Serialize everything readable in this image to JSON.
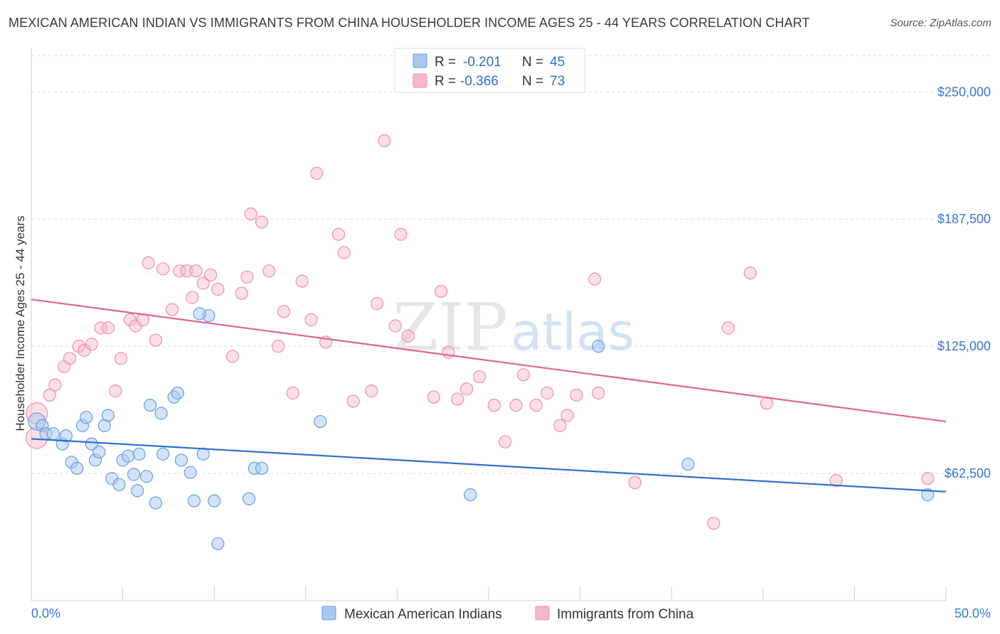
{
  "title": "MEXICAN AMERICAN INDIAN VS IMMIGRANTS FROM CHINA HOUSEHOLDER INCOME AGES 25 - 44 YEARS CORRELATION CHART",
  "source": "Source: ZipAtlas.com",
  "watermark": {
    "zip": "ZIP",
    "atlas": "atlas"
  },
  "colors": {
    "blue_fill": "#a9c8f0",
    "blue_stroke": "#6a9ee0",
    "blue_line": "#2f6fd0",
    "pink_fill": "#f7b8cb",
    "pink_stroke": "#ee8fae",
    "pink_line": "#e06690",
    "tick_label": "#3b78c8",
    "grid": "#dddddd"
  },
  "legend": {
    "rows": [
      {
        "r_label": "R =",
        "r_value": "-0.201",
        "n_label": "N =",
        "n_value": "45"
      },
      {
        "r_label": "R =",
        "r_value": "-0.366",
        "n_label": "N =",
        "n_value": "73"
      }
    ]
  },
  "chart_data": {
    "type": "scatter",
    "title": "MEXICAN AMERICAN INDIAN VS IMMIGRANTS FROM CHINA HOUSEHOLDER INCOME AGES 25 - 44 YEARS CORRELATION CHART",
    "xlabel": "",
    "ylabel": "Householder Income Ages 25 - 44 years",
    "xlim": [
      0,
      50
    ],
    "ylim": [
      0,
      270000
    ],
    "x_tick_labels": [
      "0.0%",
      "50.0%"
    ],
    "y_ticks": [
      62500,
      125000,
      187500,
      250000
    ],
    "y_tick_labels": [
      "$62,500",
      "$125,000",
      "$187,500",
      "$250,000"
    ],
    "grid": true,
    "legend_position": "top-center",
    "series": [
      {
        "name": "Mexican American Indians",
        "color": "#a9c8f0",
        "trend": {
          "x": [
            0,
            50
          ],
          "y": [
            79500,
            53500
          ]
        },
        "points": [
          [
            0.3,
            88000
          ],
          [
            0.6,
            86000
          ],
          [
            0.8,
            82000
          ],
          [
            1.2,
            82000
          ],
          [
            1.7,
            77000
          ],
          [
            1.9,
            81000
          ],
          [
            2.2,
            68000
          ],
          [
            2.5,
            65000
          ],
          [
            2.8,
            86000
          ],
          [
            3.0,
            90000
          ],
          [
            3.3,
            77000
          ],
          [
            3.5,
            69000
          ],
          [
            3.7,
            73000
          ],
          [
            4.0,
            86000
          ],
          [
            4.2,
            91000
          ],
          [
            4.4,
            60000
          ],
          [
            4.8,
            57000
          ],
          [
            5.0,
            69000
          ],
          [
            5.3,
            71000
          ],
          [
            5.6,
            62000
          ],
          [
            5.8,
            54000
          ],
          [
            5.9,
            72000
          ],
          [
            6.3,
            61000
          ],
          [
            6.5,
            96000
          ],
          [
            6.8,
            48000
          ],
          [
            7.1,
            92000
          ],
          [
            7.2,
            72000
          ],
          [
            7.8,
            100000
          ],
          [
            8.0,
            102000
          ],
          [
            8.2,
            69000
          ],
          [
            8.7,
            63000
          ],
          [
            8.9,
            49000
          ],
          [
            9.4,
            72000
          ],
          [
            9.7,
            140000
          ],
          [
            10.0,
            49000
          ],
          [
            10.2,
            28000
          ],
          [
            11.9,
            50000
          ],
          [
            12.2,
            65000
          ],
          [
            12.6,
            65000
          ],
          [
            15.8,
            88000
          ],
          [
            24.0,
            52000
          ],
          [
            31.0,
            125000
          ],
          [
            35.9,
            67000
          ],
          [
            49.0,
            52000
          ],
          [
            9.2,
            141000
          ]
        ]
      },
      {
        "name": "Immigrants from China",
        "color": "#f7b8cb",
        "trend": {
          "x": [
            0,
            50
          ],
          "y": [
            148000,
            88000
          ]
        },
        "points": [
          [
            0.3,
            92000
          ],
          [
            0.3,
            80000
          ],
          [
            1.0,
            101000
          ],
          [
            1.3,
            106000
          ],
          [
            1.8,
            115000
          ],
          [
            2.1,
            119000
          ],
          [
            2.6,
            125000
          ],
          [
            2.9,
            123000
          ],
          [
            3.3,
            126000
          ],
          [
            3.8,
            134000
          ],
          [
            4.2,
            134000
          ],
          [
            4.6,
            103000
          ],
          [
            4.9,
            119000
          ],
          [
            5.4,
            138000
          ],
          [
            5.7,
            135000
          ],
          [
            6.1,
            138000
          ],
          [
            6.4,
            166000
          ],
          [
            6.8,
            128000
          ],
          [
            7.2,
            163000
          ],
          [
            7.7,
            143000
          ],
          [
            8.1,
            162000
          ],
          [
            8.5,
            162000
          ],
          [
            8.8,
            149000
          ],
          [
            9.0,
            162000
          ],
          [
            9.4,
            156000
          ],
          [
            9.8,
            160000
          ],
          [
            10.2,
            153000
          ],
          [
            11.0,
            120000
          ],
          [
            11.5,
            151000
          ],
          [
            11.8,
            159000
          ],
          [
            12.0,
            190000
          ],
          [
            12.6,
            186000
          ],
          [
            13.0,
            162000
          ],
          [
            13.5,
            125000
          ],
          [
            13.8,
            142000
          ],
          [
            14.3,
            102000
          ],
          [
            14.8,
            157000
          ],
          [
            15.3,
            138000
          ],
          [
            15.6,
            210000
          ],
          [
            16.1,
            127000
          ],
          [
            16.8,
            180000
          ],
          [
            17.1,
            171000
          ],
          [
            17.6,
            98000
          ],
          [
            18.6,
            103000
          ],
          [
            18.9,
            146000
          ],
          [
            19.3,
            226000
          ],
          [
            19.9,
            135000
          ],
          [
            20.2,
            180000
          ],
          [
            20.6,
            130000
          ],
          [
            22.0,
            100000
          ],
          [
            22.4,
            152000
          ],
          [
            22.8,
            122000
          ],
          [
            23.3,
            99000
          ],
          [
            23.8,
            104000
          ],
          [
            24.5,
            110000
          ],
          [
            25.3,
            96000
          ],
          [
            25.9,
            78000
          ],
          [
            26.5,
            96000
          ],
          [
            26.9,
            111000
          ],
          [
            27.6,
            96000
          ],
          [
            28.2,
            102000
          ],
          [
            28.9,
            86000
          ],
          [
            29.3,
            91000
          ],
          [
            29.8,
            101000
          ],
          [
            30.8,
            158000
          ],
          [
            31.0,
            102000
          ],
          [
            33.0,
            58000
          ],
          [
            37.3,
            38000
          ],
          [
            38.1,
            134000
          ],
          [
            39.3,
            161000
          ],
          [
            40.2,
            97000
          ],
          [
            44.0,
            59000
          ],
          [
            49.0,
            60000
          ]
        ]
      }
    ]
  },
  "bottom_legend": [
    {
      "label": "Mexican American Indians"
    },
    {
      "label": "Immigrants from China"
    }
  ]
}
